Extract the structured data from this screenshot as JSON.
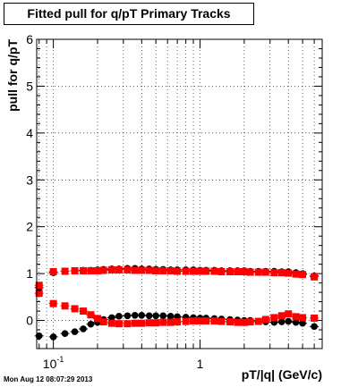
{
  "chart_data": {
    "type": "scatter",
    "title": "Fitted pull for q/pT  Primary Tracks",
    "xlabel": "pT/|q| (GeV/c)",
    "ylabel": "pull for q/pT",
    "x_scale": "log",
    "xlim": [
      0.077,
      6.8
    ],
    "ylim": [
      -0.6,
      6
    ],
    "x_ticks": [
      {
        "value": 0.1,
        "label": "10",
        "exp": "-1"
      },
      {
        "value": 1,
        "label": "1",
        "exp": ""
      }
    ],
    "y_ticks": [
      0,
      1,
      2,
      3,
      4,
      5,
      6
    ],
    "grid": true,
    "series": [
      {
        "color": "#000000",
        "x": [
          0.08,
          0.1,
          0.12,
          0.14,
          0.16,
          0.18,
          0.2,
          0.22,
          0.25,
          0.28,
          0.32,
          0.36,
          0.4,
          0.45,
          0.5,
          0.56,
          0.63,
          0.7,
          0.8,
          0.9,
          1.0,
          1.1,
          1.25,
          1.4,
          1.6,
          1.8,
          2.0,
          2.2,
          2.5,
          2.8,
          3.2,
          3.6,
          4.0,
          4.5,
          5.0,
          6.0
        ],
        "values": [
          -0.33,
          -0.35,
          -0.28,
          -0.24,
          -0.18,
          -0.08,
          -0.04,
          0.02,
          0.06,
          0.09,
          0.1,
          0.11,
          0.11,
          0.1,
          0.1,
          0.1,
          0.09,
          0.08,
          0.07,
          0.06,
          0.05,
          0.05,
          0.04,
          0.03,
          0.02,
          0.01,
          0.0,
          0.0,
          -0.02,
          -0.03,
          -0.04,
          -0.03,
          -0.02,
          -0.04,
          -0.06,
          -0.13
        ]
      },
      {
        "color": "#ff0000",
        "x": [
          0.08,
          0.1,
          0.12,
          0.14,
          0.16,
          0.18,
          0.2,
          0.22,
          0.25,
          0.28,
          0.32,
          0.36,
          0.4,
          0.45,
          0.5,
          0.56,
          0.63,
          0.7,
          0.8,
          0.9,
          1.0,
          1.1,
          1.25,
          1.4,
          1.6,
          1.8,
          2.0,
          2.2,
          2.5,
          2.8,
          3.2,
          3.6,
          4.0,
          4.5,
          5.0,
          6.0
        ],
        "values": [
          0.58,
          0.36,
          0.31,
          0.25,
          0.2,
          0.12,
          0.04,
          -0.03,
          -0.06,
          -0.07,
          -0.07,
          -0.06,
          -0.06,
          -0.05,
          -0.05,
          -0.04,
          -0.04,
          -0.03,
          -0.02,
          -0.01,
          -0.01,
          -0.01,
          -0.01,
          -0.02,
          -0.03,
          -0.04,
          -0.04,
          -0.03,
          -0.02,
          0.02,
          0.06,
          0.1,
          0.14,
          0.08,
          0.06,
          0.05
        ]
      },
      {
        "color": "#000000",
        "x": [
          0.08,
          0.1,
          0.12,
          0.14,
          0.16,
          0.18,
          0.2,
          0.22,
          0.25,
          0.28,
          0.32,
          0.36,
          0.4,
          0.45,
          0.5,
          0.56,
          0.63,
          0.7,
          0.8,
          0.9,
          1.0,
          1.1,
          1.25,
          1.4,
          1.6,
          1.8,
          2.0,
          2.2,
          2.5,
          2.8,
          3.2,
          3.6,
          4.0,
          4.5,
          5.0,
          6.0
        ],
        "values": [
          0.7,
          1.02,
          1.05,
          1.06,
          1.07,
          1.07,
          1.08,
          1.09,
          1.1,
          1.1,
          1.11,
          1.11,
          1.1,
          1.1,
          1.09,
          1.09,
          1.08,
          1.08,
          1.08,
          1.08,
          1.07,
          1.07,
          1.07,
          1.06,
          1.06,
          1.06,
          1.06,
          1.05,
          1.05,
          1.05,
          1.05,
          1.04,
          1.04,
          1.02,
          1.0,
          0.95
        ]
      },
      {
        "color": "#ff0000",
        "x": [
          0.08,
          0.1,
          0.12,
          0.14,
          0.16,
          0.18,
          0.2,
          0.22,
          0.25,
          0.28,
          0.32,
          0.36,
          0.4,
          0.45,
          0.5,
          0.56,
          0.63,
          0.7,
          0.8,
          0.9,
          1.0,
          1.1,
          1.25,
          1.4,
          1.6,
          1.8,
          2.0,
          2.2,
          2.5,
          2.8,
          3.2,
          3.6,
          4.0,
          4.5,
          5.0,
          6.0
        ],
        "values": [
          0.75,
          1.04,
          1.05,
          1.06,
          1.06,
          1.06,
          1.06,
          1.07,
          1.08,
          1.08,
          1.08,
          1.07,
          1.07,
          1.07,
          1.06,
          1.06,
          1.06,
          1.05,
          1.05,
          1.05,
          1.05,
          1.05,
          1.05,
          1.04,
          1.04,
          1.04,
          1.04,
          1.03,
          1.03,
          1.03,
          1.02,
          1.02,
          1.01,
          0.99,
          0.98,
          0.93
        ]
      }
    ]
  },
  "footer": {
    "timestamp": "Mon Aug 12 08:07:29 2013"
  }
}
